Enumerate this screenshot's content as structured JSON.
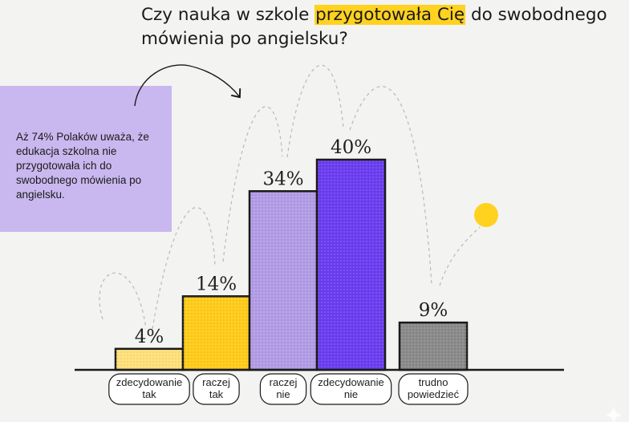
{
  "title": {
    "before": "Czy nauka w szkole ",
    "highlight": "przygotowała Cię",
    "after": " do swobodnego mówienia po angielsku?"
  },
  "callout": {
    "text": "Aż 74% Polaków uważa, że edukacja szkolna nie przygotowała ich do swobodnego mówienia po angielsku."
  },
  "colors": {
    "background": "#f3f3f1",
    "callout": "#c9b8ef",
    "highlight": "#ffd21f",
    "dot": "#ffd21f"
  },
  "chart_data": {
    "type": "bar",
    "categories": [
      "zdecydowanie tak",
      "raczej tak",
      "raczej nie",
      "zdecydowanie nie",
      "trudno powiedzieć"
    ],
    "category_lines": [
      [
        "zdecydowanie",
        "tak"
      ],
      [
        "raczej",
        "tak"
      ],
      [
        "raczej",
        "nie"
      ],
      [
        "zdecydowanie",
        "nie"
      ],
      [
        "trudno",
        "powiedzieć"
      ]
    ],
    "values": [
      4,
      14,
      34,
      40,
      9
    ],
    "value_labels": [
      "4%",
      "14%",
      "34%",
      "40%",
      "9%"
    ],
    "colors": [
      "#ffe07a",
      "#ffcc1a",
      "#b29ce6",
      "#6a3df0",
      "#8a8a8a"
    ],
    "ylim": [
      0,
      40
    ],
    "grid": false,
    "legend": "none"
  }
}
